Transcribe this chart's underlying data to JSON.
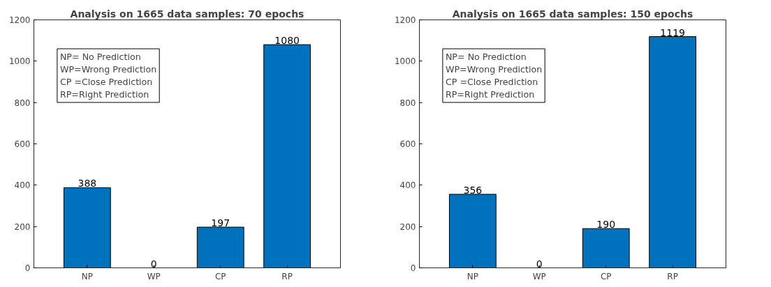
{
  "chart_data": [
    {
      "type": "bar",
      "title": "Analysis on 1665 data samples: 70 epochs",
      "categories": [
        "NP",
        "WP",
        "CP",
        "RP"
      ],
      "values": [
        388,
        0,
        197,
        1080
      ],
      "color": "#0072bd",
      "ylim": [
        0,
        1200
      ],
      "yticks": [
        0,
        200,
        400,
        600,
        800,
        1000,
        1200
      ],
      "grid": false,
      "data_labels": true,
      "annotations": [
        "NP= No Prediction",
        "WP=Wrong Prediction",
        "CP =Close Prediction",
        "RP=Right Prediction"
      ]
    },
    {
      "type": "bar",
      "title": "Analysis on 1665 data samples: 150 epochs",
      "categories": [
        "NP",
        "WP",
        "CP",
        "RP"
      ],
      "values": [
        356,
        0,
        190,
        1119
      ],
      "color": "#0072bd",
      "ylim": [
        0,
        1200
      ],
      "yticks": [
        0,
        200,
        400,
        600,
        800,
        1000,
        1200
      ],
      "grid": false,
      "data_labels": true,
      "annotations": [
        "NP= No Prediction",
        "WP=Wrong Prediction",
        "CP =Close Prediction",
        "RP=Right Prediction"
      ]
    }
  ]
}
